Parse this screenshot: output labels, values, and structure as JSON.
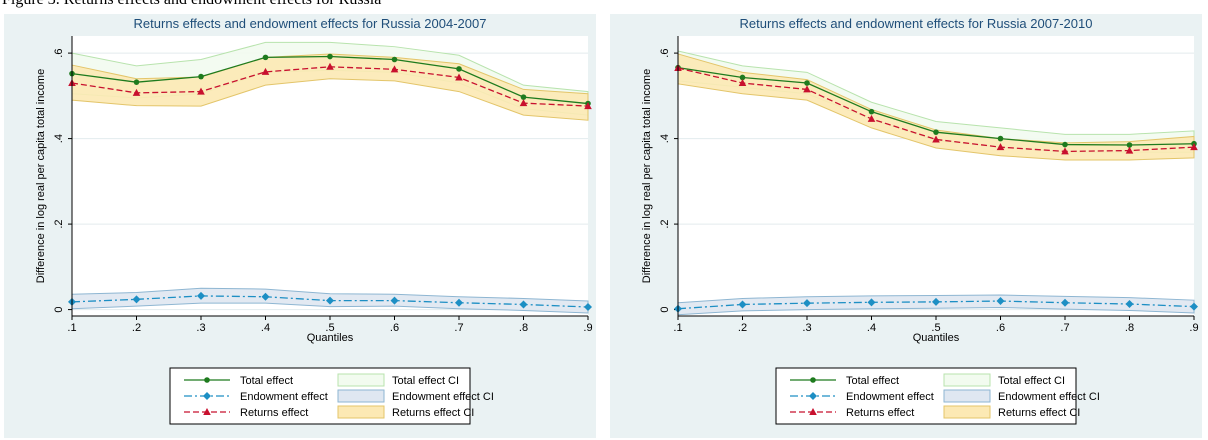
{
  "caption": "Figure 3. Returns effects and endowment effects for Russia",
  "chart_data": [
    {
      "type": "line",
      "title": "Returns effects and endowment effects for Russia 2004-2007",
      "xlabel": "Quantiles",
      "ylabel": "Difference in log real per capita total income",
      "x": [
        0.1,
        0.2,
        0.3,
        0.4,
        0.5,
        0.6,
        0.7,
        0.8,
        0.9
      ],
      "x_tick_labels": [
        ".1",
        ".2",
        ".3",
        ".4",
        ".5",
        ".6",
        ".7",
        ".8",
        ".9"
      ],
      "y_ticks": [
        0,
        0.2,
        0.4,
        0.6
      ],
      "y_tick_labels": [
        "0",
        ".2",
        ".4",
        ".6"
      ],
      "xlim": [
        0.1,
        0.9
      ],
      "ylim": [
        -0.015,
        0.64
      ],
      "grid": true,
      "legend_position": "bottom",
      "series": [
        {
          "name": "Total effect",
          "color": "#1e7b1e",
          "marker": "circle",
          "dash": "solid",
          "values": [
            0.552,
            0.532,
            0.545,
            0.59,
            0.592,
            0.585,
            0.563,
            0.497,
            0.482
          ]
        },
        {
          "name": "Endowment effect",
          "color": "#1d8fc4",
          "marker": "diamond",
          "dash": "dashdot",
          "values": [
            0.018,
            0.024,
            0.032,
            0.03,
            0.021,
            0.021,
            0.016,
            0.012,
            0.006
          ]
        },
        {
          "name": "Returns effect",
          "color": "#c8102e",
          "marker": "triangle",
          "dash": "dash",
          "values": [
            0.53,
            0.507,
            0.51,
            0.556,
            0.568,
            0.562,
            0.543,
            0.483,
            0.476
          ]
        }
      ],
      "bands": [
        {
          "name": "Total effect CI",
          "fill": "#f2fbef",
          "stroke": "#b8e3ad",
          "lower": [
            0.505,
            0.495,
            0.505,
            0.555,
            0.56,
            0.555,
            0.53,
            0.47,
            0.455
          ],
          "upper": [
            0.6,
            0.57,
            0.585,
            0.625,
            0.625,
            0.615,
            0.595,
            0.525,
            0.51
          ]
        },
        {
          "name": "Endowment effect CI",
          "fill": "#dfe7f1",
          "stroke": "#8eb6d2",
          "lower": [
            0.002,
            0.008,
            0.015,
            0.015,
            0.007,
            0.008,
            0.002,
            -0.002,
            -0.008
          ],
          "upper": [
            0.036,
            0.04,
            0.05,
            0.048,
            0.037,
            0.036,
            0.03,
            0.026,
            0.02
          ]
        },
        {
          "name": "Returns effect CI",
          "fill": "#fce9b4",
          "stroke": "#e3c56a",
          "lower": [
            0.49,
            0.477,
            0.476,
            0.525,
            0.54,
            0.535,
            0.51,
            0.455,
            0.443
          ],
          "upper": [
            0.572,
            0.54,
            0.544,
            0.59,
            0.598,
            0.59,
            0.575,
            0.515,
            0.505
          ]
        }
      ],
      "legend": [
        "Total effect",
        "Total effect CI",
        "Endowment effect",
        "Endowment effect CI",
        "Returns effect",
        "Returns effect CI"
      ]
    },
    {
      "type": "line",
      "title": "Returns effects and endowment effects for Russia 2007-2010",
      "xlabel": "Quantiles",
      "ylabel": "Difference in log real per capita total income",
      "x": [
        0.1,
        0.2,
        0.3,
        0.4,
        0.5,
        0.6,
        0.7,
        0.8,
        0.9
      ],
      "x_tick_labels": [
        ".1",
        ".2",
        ".3",
        ".4",
        ".5",
        ".6",
        ".7",
        ".8",
        ".9"
      ],
      "y_ticks": [
        0,
        0.2,
        0.4,
        0.6
      ],
      "y_tick_labels": [
        "0",
        ".2",
        ".4",
        ".6"
      ],
      "xlim": [
        0.1,
        0.9
      ],
      "ylim": [
        -0.015,
        0.64
      ],
      "grid": true,
      "legend_position": "bottom",
      "series": [
        {
          "name": "Total effect",
          "color": "#1e7b1e",
          "marker": "circle",
          "dash": "solid",
          "values": [
            0.566,
            0.543,
            0.53,
            0.463,
            0.415,
            0.4,
            0.386,
            0.385,
            0.388
          ]
        },
        {
          "name": "Endowment effect",
          "color": "#1d8fc4",
          "marker": "diamond",
          "dash": "dashdot",
          "values": [
            0.002,
            0.012,
            0.015,
            0.017,
            0.018,
            0.02,
            0.016,
            0.013,
            0.007
          ]
        },
        {
          "name": "Returns effect",
          "color": "#c8102e",
          "marker": "triangle",
          "dash": "dash",
          "values": [
            0.565,
            0.53,
            0.515,
            0.446,
            0.398,
            0.38,
            0.37,
            0.372,
            0.38
          ]
        }
      ],
      "bands": [
        {
          "name": "Total effect CI",
          "fill": "#f2fbef",
          "stroke": "#b8e3ad",
          "lower": [
            0.535,
            0.52,
            0.505,
            0.445,
            0.395,
            0.38,
            0.368,
            0.368,
            0.368
          ],
          "upper": [
            0.605,
            0.57,
            0.555,
            0.485,
            0.44,
            0.425,
            0.41,
            0.41,
            0.418
          ]
        },
        {
          "name": "Endowment effect CI",
          "fill": "#dfe7f1",
          "stroke": "#8eb6d2",
          "lower": [
            -0.012,
            -0.003,
            0.0,
            0.002,
            0.003,
            0.005,
            0.001,
            -0.002,
            -0.008
          ],
          "upper": [
            0.016,
            0.026,
            0.03,
            0.032,
            0.033,
            0.034,
            0.031,
            0.028,
            0.022
          ]
        },
        {
          "name": "Returns effect CI",
          "fill": "#fce9b4",
          "stroke": "#e3c56a",
          "lower": [
            0.528,
            0.505,
            0.49,
            0.425,
            0.378,
            0.36,
            0.35,
            0.35,
            0.355
          ],
          "upper": [
            0.598,
            0.555,
            0.538,
            0.468,
            0.42,
            0.4,
            0.39,
            0.393,
            0.405
          ]
        }
      ],
      "legend": [
        "Total effect",
        "Total effect CI",
        "Endowment effect",
        "Endowment effect CI",
        "Returns effect",
        "Returns effect CI"
      ]
    }
  ]
}
